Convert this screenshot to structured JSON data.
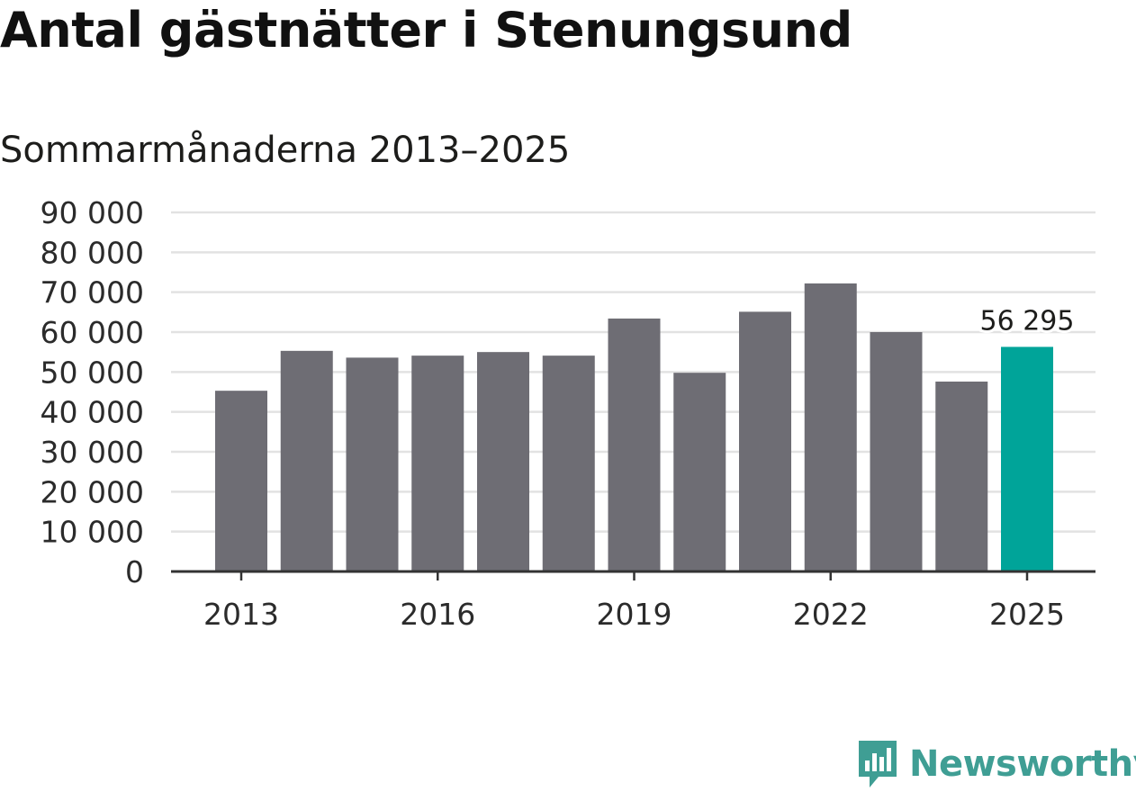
{
  "title": "Antal gästnätter i Stenungsund",
  "subtitle": "Sommarmånaderna 2013–2025",
  "chart_data": {
    "type": "bar",
    "categories": [
      "2013",
      "2014",
      "2015",
      "2016",
      "2017",
      "2018",
      "2019",
      "2020",
      "2021",
      "2022",
      "2023",
      "2024",
      "2025"
    ],
    "values": [
      45300,
      55300,
      53600,
      54100,
      55000,
      54100,
      63400,
      49800,
      65100,
      72200,
      60000,
      47600,
      56295
    ],
    "ylim": [
      0,
      90000
    ],
    "yticks": [
      0,
      10000,
      20000,
      30000,
      40000,
      50000,
      60000,
      70000,
      80000,
      90000
    ],
    "ytick_labels": [
      "0",
      "10 000",
      "20 000",
      "30 000",
      "40 000",
      "50 000",
      "60 000",
      "70 000",
      "80 000",
      "90 000"
    ],
    "xtick_labels": [
      "2013",
      "2016",
      "2019",
      "2022",
      "2025"
    ],
    "xtick_categories": [
      "2013",
      "2016",
      "2019",
      "2022",
      "2025"
    ],
    "annotation": {
      "category": "2025",
      "text": "56 295"
    },
    "grid": true,
    "colors": {
      "bar": "#6e6d74",
      "highlight": "#00a499",
      "grid": "#e2e2e2",
      "axis": "#333333"
    }
  },
  "brand": {
    "name": "Newsworthy",
    "icon": "newsworthy-logo-icon",
    "color": "#3f9e94"
  }
}
